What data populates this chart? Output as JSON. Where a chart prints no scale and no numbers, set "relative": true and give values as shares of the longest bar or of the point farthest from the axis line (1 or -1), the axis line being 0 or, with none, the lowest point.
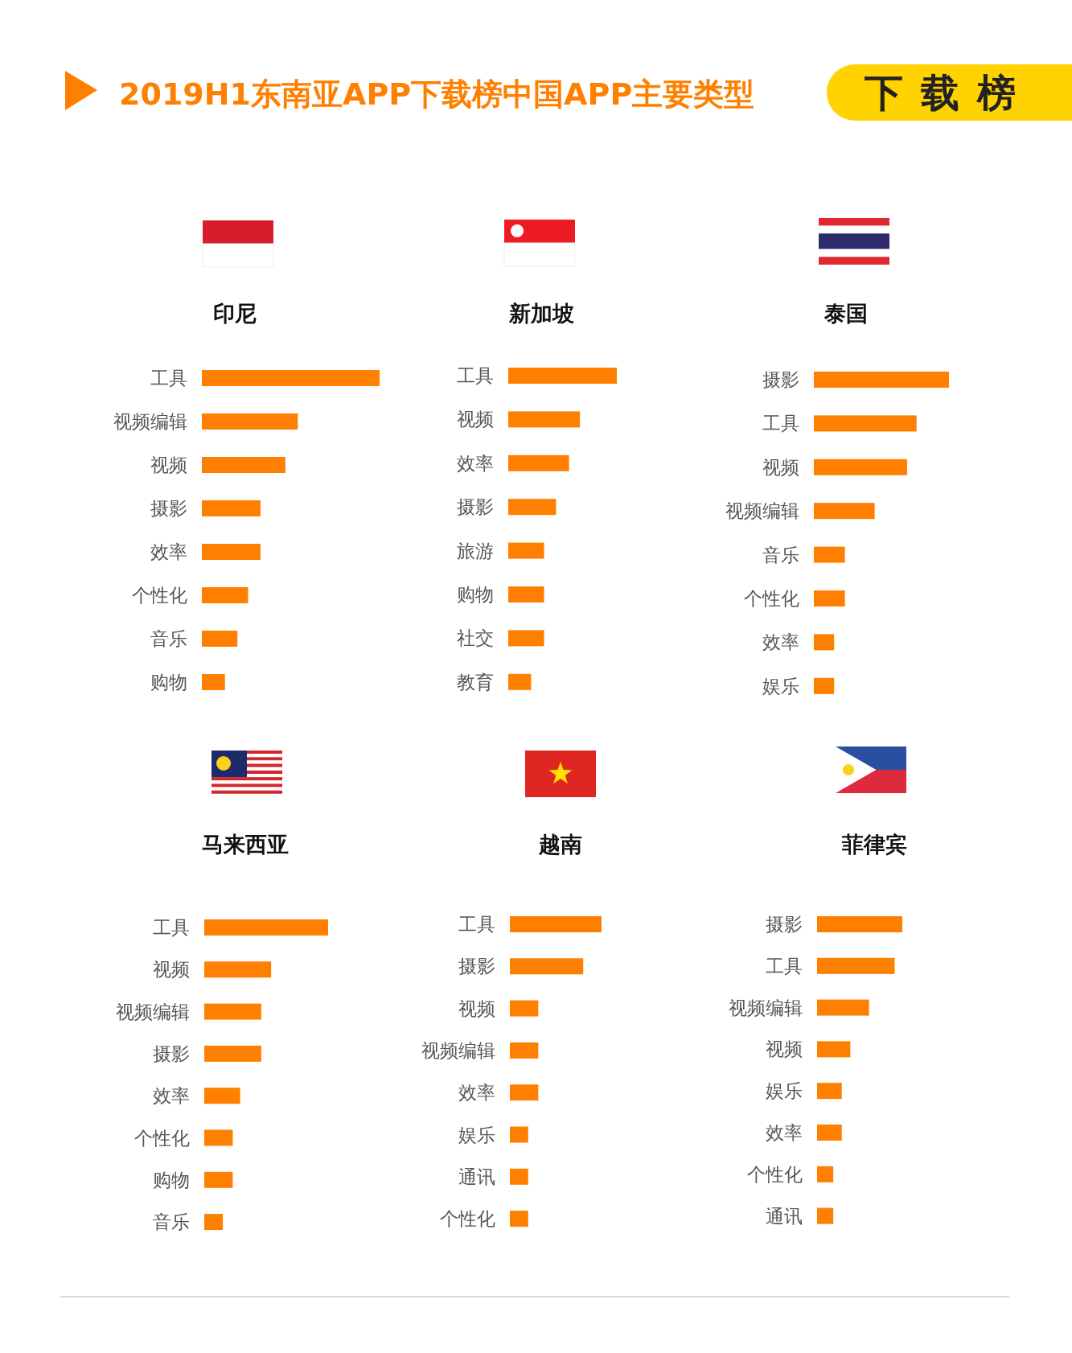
{
  "chart_data": [
    {
      "type": "other",
      "title": "2019H1东南亚APP下载榜中国APP主要类型",
      "annotations": [
        "下载榜"
      ]
    },
    {
      "type": "bar",
      "title": "印尼",
      "orientation": "horizontal",
      "relative": true,
      "color": "#ff7f00",
      "categories": [
        "工具",
        "视频编辑",
        "视频",
        "摄影",
        "效率",
        "个性化",
        "音乐",
        "购物"
      ],
      "values": [
        1,
        0.54,
        0.47,
        0.33,
        0.33,
        0.26,
        0.2,
        0.13
      ]
    },
    {
      "type": "bar",
      "title": "新加坡",
      "orientation": "horizontal",
      "relative": true,
      "color": "#ff7f00",
      "categories": [
        "工具",
        "视频",
        "效率",
        "摄影",
        "旅游",
        "购物",
        "社交",
        "教育"
      ],
      "values": [
        1,
        0.66,
        0.56,
        0.44,
        0.33,
        0.33,
        0.33,
        0.21
      ]
    },
    {
      "type": "bar",
      "title": "泰国",
      "orientation": "horizontal",
      "relative": true,
      "color": "#ff7f00",
      "categories": [
        "摄影",
        "工具",
        "视频",
        "视频编辑",
        "音乐",
        "个性化",
        "效率",
        "娱乐"
      ],
      "values": [
        1,
        0.76,
        0.69,
        0.45,
        0.23,
        0.23,
        0.15,
        0.15
      ]
    },
    {
      "type": "bar",
      "title": "马来西亚",
      "orientation": "horizontal",
      "relative": true,
      "color": "#ff7f00",
      "categories": [
        "工具",
        "视频",
        "视频编辑",
        "摄影",
        "效率",
        "个性化",
        "购物",
        "音乐"
      ],
      "values": [
        1,
        0.54,
        0.46,
        0.46,
        0.29,
        0.23,
        0.23,
        0.15
      ]
    },
    {
      "type": "bar",
      "title": "越南",
      "orientation": "horizontal",
      "relative": true,
      "color": "#ff7f00",
      "categories": [
        "工具",
        "摄影",
        "视频",
        "视频编辑",
        "效率",
        "娱乐",
        "通讯",
        "个性化"
      ],
      "values": [
        1,
        0.8,
        0.31,
        0.31,
        0.31,
        0.2,
        0.2,
        0.2
      ]
    },
    {
      "type": "bar",
      "title": "菲律宾",
      "orientation": "horizontal",
      "relative": true,
      "color": "#ff7f00",
      "categories": [
        "摄影",
        "工具",
        "视频编辑",
        "视频",
        "娱乐",
        "效率",
        "个性化",
        "通讯"
      ],
      "values": [
        1,
        0.91,
        0.61,
        0.39,
        0.29,
        0.29,
        0.19,
        0.19
      ]
    }
  ]
}
